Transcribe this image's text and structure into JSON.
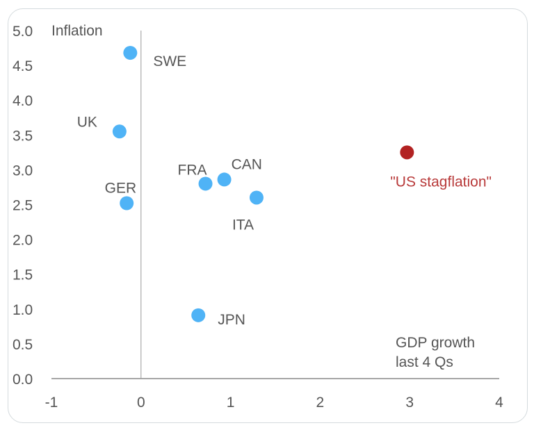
{
  "chart_data": {
    "type": "scatter",
    "title": "",
    "xlabel": "GDP growth last 4 Qs",
    "xlabel_lines": [
      "GDP growth",
      "last 4 Qs"
    ],
    "ylabel": "Inflation",
    "xlim": [
      -1,
      4
    ],
    "ylim": [
      0,
      5
    ],
    "x_ticks": [
      "-1",
      "0",
      "1",
      "2",
      "3",
      "4"
    ],
    "y_ticks": [
      "0.0",
      "0.5",
      "1.0",
      "1.5",
      "2.0",
      "2.5",
      "3.0",
      "3.5",
      "4.0",
      "4.5",
      "5.0"
    ],
    "grid": false,
    "legend": "none",
    "points": [
      {
        "label": "SWE",
        "x": -0.12,
        "y": 4.68,
        "color": "#4fb3f6"
      },
      {
        "label": "UK",
        "x": -0.24,
        "y": 3.55,
        "color": "#4fb3f6"
      },
      {
        "label": "GER",
        "x": -0.16,
        "y": 2.52,
        "color": "#4fb3f6"
      },
      {
        "label": "FRA",
        "x": 0.72,
        "y": 2.8,
        "color": "#4fb3f6"
      },
      {
        "label": "CAN",
        "x": 0.93,
        "y": 2.86,
        "color": "#4fb3f6"
      },
      {
        "label": "ITA",
        "x": 1.29,
        "y": 2.6,
        "color": "#4fb3f6"
      },
      {
        "label": "JPN",
        "x": 0.64,
        "y": 0.91,
        "color": "#4fb3f6"
      },
      {
        "label": "\"US stagflation\"",
        "x": 2.97,
        "y": 3.25,
        "color": "#b22222"
      }
    ]
  }
}
